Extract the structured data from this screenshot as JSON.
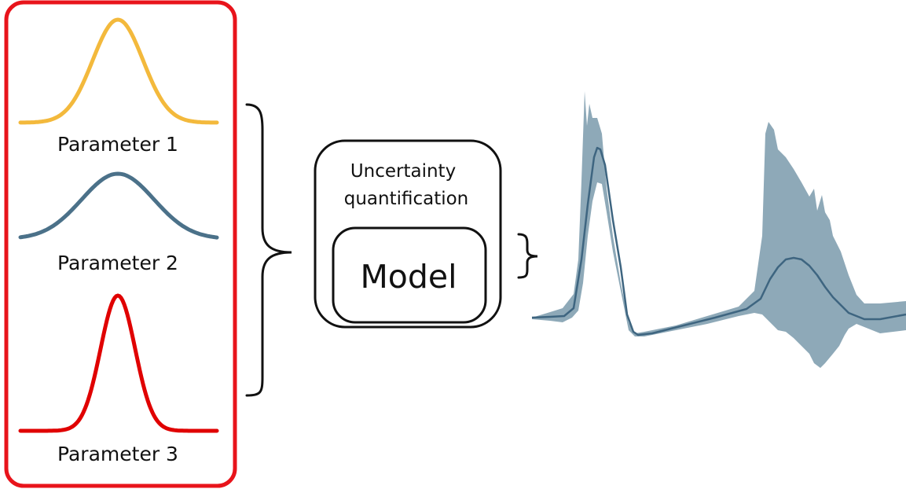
{
  "parameters": [
    {
      "label": "Parameter 1",
      "color": "#f3b93c"
    },
    {
      "label": "Parameter 2",
      "color": "#4b7189"
    },
    {
      "label": "Parameter 3",
      "color": "#e00000"
    }
  ],
  "uq_box": {
    "line1": "Uncertainty",
    "line2": "quantification"
  },
  "model_box": {
    "label": "Model"
  },
  "colors": {
    "panel_border": "#e8141b",
    "output_band": "#8ea9b8",
    "output_mean": "#3e6580",
    "outline": "#111111"
  },
  "icons": [
    "curly-brace-icon",
    "curly-brace-icon"
  ]
}
